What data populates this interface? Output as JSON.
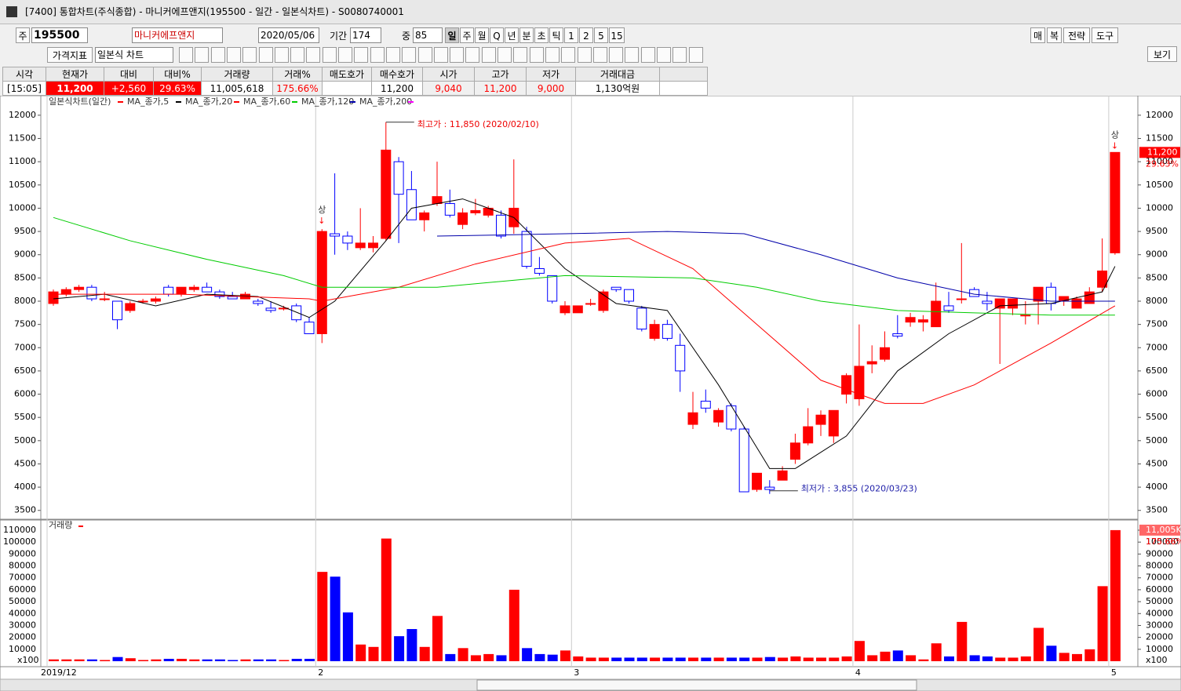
{
  "window": {
    "title": "[7400] 통합차트(주식종합) - 마니커에프앤지(195500 - 일간 - 일본식차트) - S0080740001"
  },
  "toolbar": {
    "code_prefix": "주",
    "code": "195500",
    "name": "마니커에프앤지",
    "date": "2020/05/06",
    "period_label": "기간",
    "period": "174",
    "mid_label": "중",
    "mid": "85",
    "periods": [
      "일",
      "주",
      "월",
      "Q",
      "년",
      "분",
      "초",
      "틱",
      "1",
      "2",
      "5",
      "15"
    ],
    "right_buttons": [
      "매",
      "복",
      "전략",
      "도구"
    ],
    "indicator": "가격지표",
    "chart_style": "일본식 차트",
    "view": "보기"
  },
  "quote": {
    "headers": [
      "시각",
      "현재가",
      "대비",
      "대비%",
      "거래량",
      "거래%",
      "매도호가",
      "매수호가",
      "시가",
      "고가",
      "저가",
      "거래대금"
    ],
    "values": [
      "[15:05]",
      "11,200",
      "+2,560",
      "29.63%",
      "11,005,618",
      "175.66%",
      "",
      "11,200",
      "9,040",
      "11,200",
      "9,000",
      "1,130억원"
    ]
  },
  "chart_data": {
    "type": "candlestick",
    "legend_title": "일본식차트(일간)",
    "legend_color": "#ff0000",
    "up_color": "#ff0000",
    "down_color": "#0000ff",
    "xlabels": [
      {
        "value": 0,
        "label": "2019/12"
      },
      {
        "value": 21,
        "label": "2"
      },
      {
        "value": 41,
        "label": "3"
      },
      {
        "value": 63,
        "label": "4"
      },
      {
        "value": 83,
        "label": "5"
      }
    ],
    "open": [
      7950,
      8150,
      8250,
      8300,
      8050,
      8000,
      7800,
      8000,
      8000,
      8300,
      8150,
      8250,
      8300,
      8200,
      8100,
      8050,
      8000,
      7850,
      7850,
      7900,
      7550,
      7300,
      9450,
      9400,
      9150,
      9150,
      9350,
      11000,
      10400,
      9750,
      10100,
      10100,
      9650,
      9900,
      9850,
      9850,
      9600,
      9500,
      8700,
      8550,
      7750,
      7750,
      7950,
      7800,
      8300,
      8250,
      7850,
      7200,
      7500,
      7050,
      5350,
      5850,
      5400,
      5750,
      5250,
      3950,
      4000,
      4150,
      4600,
      4950,
      5350,
      5100,
      6000,
      5900,
      6650,
      6750,
      7300,
      7550,
      7550,
      7450,
      7900,
      8050,
      8250,
      8000,
      7850,
      7850,
      7700,
      8000,
      8300,
      8000,
      7850,
      7950,
      8300,
      9040
    ],
    "high": [
      8250,
      8300,
      8350,
      8350,
      8200,
      8000,
      8000,
      8050,
      8100,
      8350,
      8300,
      8350,
      8400,
      8250,
      8200,
      8200,
      8050,
      8000,
      7900,
      7950,
      7650,
      9550,
      10750,
      9500,
      10000,
      9400,
      11850,
      11100,
      10800,
      9950,
      11000,
      10400,
      10000,
      10200,
      10050,
      9950,
      11050,
      9600,
      8950,
      8550,
      8000,
      7900,
      8050,
      8250,
      8300,
      8250,
      7900,
      7600,
      7600,
      7300,
      6050,
      6100,
      5700,
      5800,
      5300,
      4300,
      4150,
      4450,
      5150,
      5700,
      5650,
      5650,
      6450,
      7500,
      7050,
      7350,
      7700,
      7750,
      7700,
      8400,
      8200,
      9250,
      8300,
      8200,
      8050,
      8050,
      8000,
      8300,
      8400,
      8100,
      8100,
      8300,
      9350,
      11200
    ],
    "low": [
      7900,
      8100,
      8200,
      8000,
      8000,
      7400,
      7750,
      7950,
      7950,
      8100,
      8100,
      8200,
      8200,
      8050,
      8050,
      8050,
      7900,
      7750,
      7800,
      7550,
      7300,
      7100,
      9000,
      9100,
      9100,
      9050,
      9300,
      9250,
      9750,
      9500,
      10050,
      9800,
      9550,
      9850,
      9800,
      9350,
      9450,
      8700,
      8550,
      7950,
      7700,
      7750,
      7900,
      7750,
      8200,
      7950,
      7350,
      7150,
      7150,
      6050,
      5250,
      5600,
      5300,
      5200,
      3900,
      3900,
      3855,
      4150,
      4500,
      4900,
      5100,
      4950,
      5800,
      5750,
      6450,
      6700,
      7200,
      7450,
      7350,
      7450,
      7750,
      7950,
      8100,
      7800,
      6650,
      7700,
      7500,
      7500,
      7800,
      7900,
      7850,
      7950,
      8200,
      9000
    ],
    "close": [
      8200,
      8250,
      8300,
      8050,
      8050,
      7600,
      7950,
      8000,
      8050,
      8150,
      8300,
      8300,
      8200,
      8100,
      8050,
      8150,
      7950,
      7800,
      7850,
      7600,
      7300,
      9500,
      9400,
      9250,
      9250,
      9250,
      11250,
      10300,
      9750,
      9900,
      10250,
      9850,
      9900,
      9950,
      10000,
      9400,
      10000,
      8750,
      8600,
      8000,
      7900,
      7900,
      7950,
      8200,
      8250,
      8000,
      7400,
      7500,
      7200,
      6500,
      5600,
      5700,
      5650,
      5250,
      3900,
      4300,
      3950,
      4350,
      4950,
      5300,
      5550,
      5650,
      6400,
      6600,
      6700,
      7000,
      7250,
      7650,
      7600,
      8000,
      7800,
      8050,
      8100,
      7950,
      8050,
      8050,
      7700,
      8300,
      7950,
      8100,
      8050,
      8200,
      8650,
      11200
    ],
    "ylim": [
      3310,
      12420
    ],
    "yticks": [
      3500,
      4000,
      4500,
      5000,
      5500,
      6000,
      6500,
      7000,
      7500,
      8000,
      8500,
      9000,
      9500,
      10000,
      10500,
      11000,
      11500,
      12000
    ],
    "ma": [
      {
        "name": "MA_종가,5",
        "color": "#000000",
        "x": [
          0,
          4,
          8,
          12,
          16,
          20,
          22,
          26,
          28,
          32,
          36,
          40,
          44,
          48,
          52,
          56,
          58,
          62,
          66,
          70,
          74,
          78,
          82,
          83
        ],
        "values": [
          8050,
          8150,
          7900,
          8150,
          8100,
          7650,
          8000,
          9300,
          10000,
          10200,
          9800,
          8700,
          7950,
          7800,
          6200,
          4400,
          4400,
          5100,
          6500,
          7300,
          7900,
          7950,
          8200,
          8750
        ]
      },
      {
        "name": "MA_종가,20",
        "color": "#ff0000",
        "x": [
          0,
          10,
          20,
          21,
          27,
          33,
          40,
          45,
          50,
          55,
          60,
          65,
          68,
          72,
          78,
          83
        ],
        "values": [
          8150,
          8150,
          8050,
          8000,
          8300,
          8800,
          9250,
          9350,
          8700,
          7500,
          6300,
          5800,
          5800,
          6200,
          7100,
          7900
        ]
      },
      {
        "name": "MA_종가,60",
        "color": "#00cc00",
        "x": [
          0,
          6,
          12,
          18,
          21,
          30,
          40,
          50,
          55,
          60,
          66,
          72,
          78,
          83
        ],
        "values": [
          9800,
          9300,
          8900,
          8550,
          8300,
          8300,
          8550,
          8500,
          8300,
          8000,
          7800,
          7750,
          7700,
          7700
        ]
      },
      {
        "name": "MA_종가,120",
        "color": "#0000aa",
        "x": [
          30,
          40,
          48,
          54,
          60,
          66,
          72,
          78,
          83
        ],
        "values": [
          9400,
          9450,
          9500,
          9450,
          9000,
          8500,
          8150,
          8000,
          8000
        ]
      },
      {
        "name": "MA_종가,200",
        "color": "#ff00ff",
        "x": [],
        "values": []
      }
    ],
    "annotations": {
      "up_mark": "상",
      "high_note": "최고가 : 11,850 (2020/02/10)",
      "low_note": "최저가 : 3,855 (2020/03/23)",
      "last_price": "11,200",
      "change_pct": "29.63%"
    },
    "volume": {
      "label": "거래량",
      "unit": "x100",
      "last_label": "11,005K",
      "pct_label": "175.66%",
      "values": [
        1500,
        1500,
        1500,
        1500,
        1000,
        3500,
        2500,
        1000,
        1500,
        2000,
        2000,
        1500,
        1500,
        1500,
        1000,
        1500,
        1500,
        1500,
        1000,
        2000,
        2000,
        75000,
        71000,
        41000,
        14000,
        12000,
        103000,
        21000,
        27000,
        12000,
        38000,
        6000,
        11000,
        5000,
        6000,
        5000,
        60000,
        11000,
        6000,
        5500,
        9000,
        4000,
        3000,
        3000,
        3000,
        3000,
        3000,
        3000,
        3000,
        3000,
        3000,
        3000,
        3000,
        3000,
        3000,
        3000,
        3500,
        3000,
        4000,
        3000,
        3000,
        3000,
        4000,
        17000,
        5000,
        8000,
        9000,
        5000,
        1500,
        15000,
        4000,
        33000,
        5000,
        4000,
        3000,
        3000,
        4000,
        28000,
        13000,
        7000,
        6000,
        10000,
        63000,
        110056
      ],
      "ylim": [
        -4600,
        118550
      ],
      "yticks": [
        10000,
        20000,
        30000,
        40000,
        50000,
        60000,
        70000,
        80000,
        90000,
        100000,
        110000
      ]
    }
  }
}
